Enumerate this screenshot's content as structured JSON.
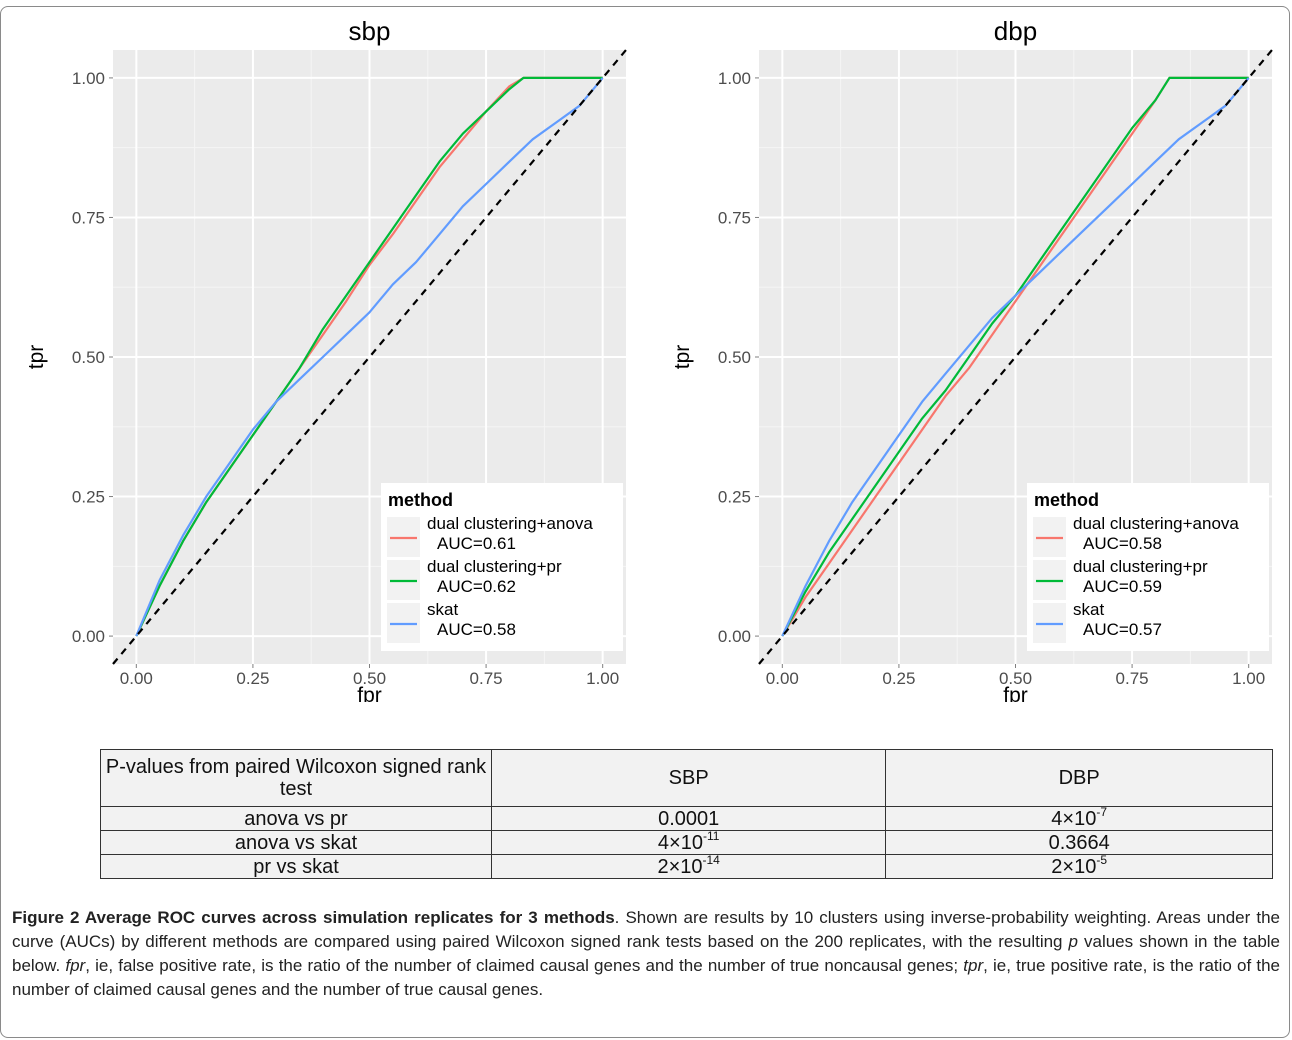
{
  "plots": [
    {
      "key": "sbp",
      "title": "sbp",
      "xlabel": "fpr",
      "ylabel": "tpr",
      "legend_title": "method",
      "legend": [
        {
          "line1": "dual clustering+anova",
          "line2": "AUC=0.61"
        },
        {
          "line1": "dual clustering+pr",
          "line2": "AUC=0.62"
        },
        {
          "line1": "skat",
          "line2": "AUC=0.58"
        }
      ]
    },
    {
      "key": "dbp",
      "title": "dbp",
      "xlabel": "fpr",
      "ylabel": "tpr",
      "legend_title": "method",
      "legend": [
        {
          "line1": "dual clustering+anova",
          "line2": "AUC=0.58"
        },
        {
          "line1": "dual clustering+pr",
          "line2": "AUC=0.59"
        },
        {
          "line1": "skat",
          "line2": "AUC=0.57"
        }
      ]
    }
  ],
  "chart_data": [
    {
      "type": "line",
      "title": "sbp",
      "xlabel": "fpr",
      "ylabel": "tpr",
      "xlim": [
        -0.05,
        1.05
      ],
      "ylim": [
        -0.05,
        1.05
      ],
      "xticks": [
        "0.00",
        "0.25",
        "0.50",
        "0.75",
        "1.00"
      ],
      "yticks": [
        "0.00",
        "0.25",
        "0.50",
        "0.75",
        "1.00"
      ],
      "grid": true,
      "legend_position": "bottom-right",
      "legend_title": "method",
      "reference_line": {
        "style": "dashed",
        "color": "#000000",
        "from": [
          -0.05,
          -0.05
        ],
        "to": [
          1.05,
          1.05
        ]
      },
      "series": [
        {
          "name": "dual clustering+anova",
          "auc": "AUC=0.61",
          "color": "#F8766D",
          "x": [
            0,
            0.05,
            0.1,
            0.15,
            0.2,
            0.25,
            0.3,
            0.35,
            0.4,
            0.45,
            0.5,
            0.55,
            0.6,
            0.65,
            0.7,
            0.75,
            0.8,
            0.83,
            0.9,
            1.0
          ],
          "y": [
            0,
            0.09,
            0.17,
            0.24,
            0.3,
            0.36,
            0.42,
            0.48,
            0.54,
            0.6,
            0.665,
            0.72,
            0.78,
            0.84,
            0.89,
            0.94,
            0.985,
            1.0,
            1.0,
            1.0
          ]
        },
        {
          "name": "dual clustering+pr",
          "auc": "AUC=0.62",
          "color": "#00BA38",
          "x": [
            0,
            0.05,
            0.1,
            0.15,
            0.2,
            0.25,
            0.3,
            0.35,
            0.4,
            0.45,
            0.5,
            0.55,
            0.6,
            0.65,
            0.7,
            0.75,
            0.8,
            0.83,
            0.9,
            1.0
          ],
          "y": [
            0,
            0.09,
            0.17,
            0.24,
            0.3,
            0.36,
            0.42,
            0.48,
            0.55,
            0.61,
            0.67,
            0.73,
            0.79,
            0.85,
            0.9,
            0.94,
            0.98,
            1.0,
            1.0,
            1.0
          ]
        },
        {
          "name": "skat",
          "auc": "AUC=0.58",
          "color": "#619CFF",
          "x": [
            0,
            0.05,
            0.1,
            0.15,
            0.2,
            0.25,
            0.3,
            0.35,
            0.4,
            0.45,
            0.5,
            0.55,
            0.6,
            0.65,
            0.7,
            0.75,
            0.8,
            0.85,
            0.9,
            0.95,
            1.0
          ],
          "y": [
            0,
            0.1,
            0.18,
            0.25,
            0.31,
            0.37,
            0.42,
            0.46,
            0.5,
            0.54,
            0.58,
            0.63,
            0.67,
            0.72,
            0.77,
            0.81,
            0.85,
            0.89,
            0.92,
            0.95,
            1.0
          ]
        }
      ]
    },
    {
      "type": "line",
      "title": "dbp",
      "xlabel": "fpr",
      "ylabel": "tpr",
      "xlim": [
        -0.05,
        1.05
      ],
      "ylim": [
        -0.05,
        1.05
      ],
      "xticks": [
        "0.00",
        "0.25",
        "0.50",
        "0.75",
        "1.00"
      ],
      "yticks": [
        "0.00",
        "0.25",
        "0.50",
        "0.75",
        "1.00"
      ],
      "grid": true,
      "legend_position": "bottom-right",
      "legend_title": "method",
      "reference_line": {
        "style": "dashed",
        "color": "#000000",
        "from": [
          -0.05,
          -0.05
        ],
        "to": [
          1.05,
          1.05
        ]
      },
      "series": [
        {
          "name": "dual clustering+anova",
          "auc": "AUC=0.58",
          "color": "#F8766D",
          "x": [
            0,
            0.05,
            0.1,
            0.15,
            0.2,
            0.25,
            0.3,
            0.35,
            0.4,
            0.45,
            0.5,
            0.55,
            0.6,
            0.65,
            0.7,
            0.75,
            0.8,
            0.83,
            0.9,
            1.0
          ],
          "y": [
            0,
            0.07,
            0.13,
            0.19,
            0.25,
            0.31,
            0.37,
            0.43,
            0.48,
            0.54,
            0.6,
            0.66,
            0.72,
            0.78,
            0.84,
            0.9,
            0.96,
            1.0,
            1.0,
            1.0
          ]
        },
        {
          "name": "dual clustering+pr",
          "auc": "AUC=0.59",
          "color": "#00BA38",
          "x": [
            0,
            0.05,
            0.1,
            0.15,
            0.2,
            0.25,
            0.3,
            0.35,
            0.4,
            0.45,
            0.5,
            0.55,
            0.6,
            0.65,
            0.7,
            0.75,
            0.8,
            0.83,
            0.9,
            1.0
          ],
          "y": [
            0,
            0.08,
            0.15,
            0.21,
            0.27,
            0.33,
            0.39,
            0.44,
            0.5,
            0.56,
            0.61,
            0.67,
            0.73,
            0.79,
            0.85,
            0.91,
            0.96,
            1.0,
            1.0,
            1.0
          ]
        },
        {
          "name": "skat",
          "auc": "AUC=0.57",
          "color": "#619CFF",
          "x": [
            0,
            0.05,
            0.1,
            0.15,
            0.2,
            0.25,
            0.3,
            0.35,
            0.4,
            0.45,
            0.5,
            0.55,
            0.6,
            0.65,
            0.7,
            0.75,
            0.8,
            0.85,
            0.9,
            0.95,
            1.0
          ],
          "y": [
            0,
            0.09,
            0.17,
            0.24,
            0.3,
            0.36,
            0.42,
            0.47,
            0.52,
            0.57,
            0.61,
            0.65,
            0.69,
            0.73,
            0.77,
            0.81,
            0.85,
            0.89,
            0.92,
            0.95,
            1.0
          ]
        }
      ]
    }
  ],
  "table": {
    "header": {
      "col1": "P-values from paired Wilcoxon signed rank test",
      "col2": "SBP",
      "col3": "DBP"
    },
    "rows": [
      {
        "label": "anova vs pr",
        "sbp": "0.0001",
        "dbp": {
          "base": "4×10",
          "exp": "-7"
        }
      },
      {
        "label": "anova vs skat",
        "sbp": {
          "base": "4×10",
          "exp": "-11"
        },
        "dbp": "0.3664"
      },
      {
        "label": "pr vs skat",
        "sbp": {
          "base": "2×10",
          "exp": "-14"
        },
        "dbp": {
          "base": "2×10",
          "exp": "-5"
        }
      }
    ]
  },
  "caption": {
    "title": "Figure 2 Average ROC curves across simulation replicates for 3 methods",
    "text1": ". Shown are results by 10 clusters using inverse-probability weighting. Areas under the curve (AUCs) by different methods are compared using paired Wilcoxon signed rank tests based on the 200 replicates, with the resulting ",
    "p": "p",
    "text2": " values shown in the table below. ",
    "fpr": "fpr",
    "text3": ", ie, false positive rate, is the ratio of the number of claimed causal genes and the number of true noncausal genes; ",
    "tpr": "tpr",
    "text4": ", ie, true positive rate, is the ratio of the number of claimed causal genes and the number of true causal genes."
  }
}
